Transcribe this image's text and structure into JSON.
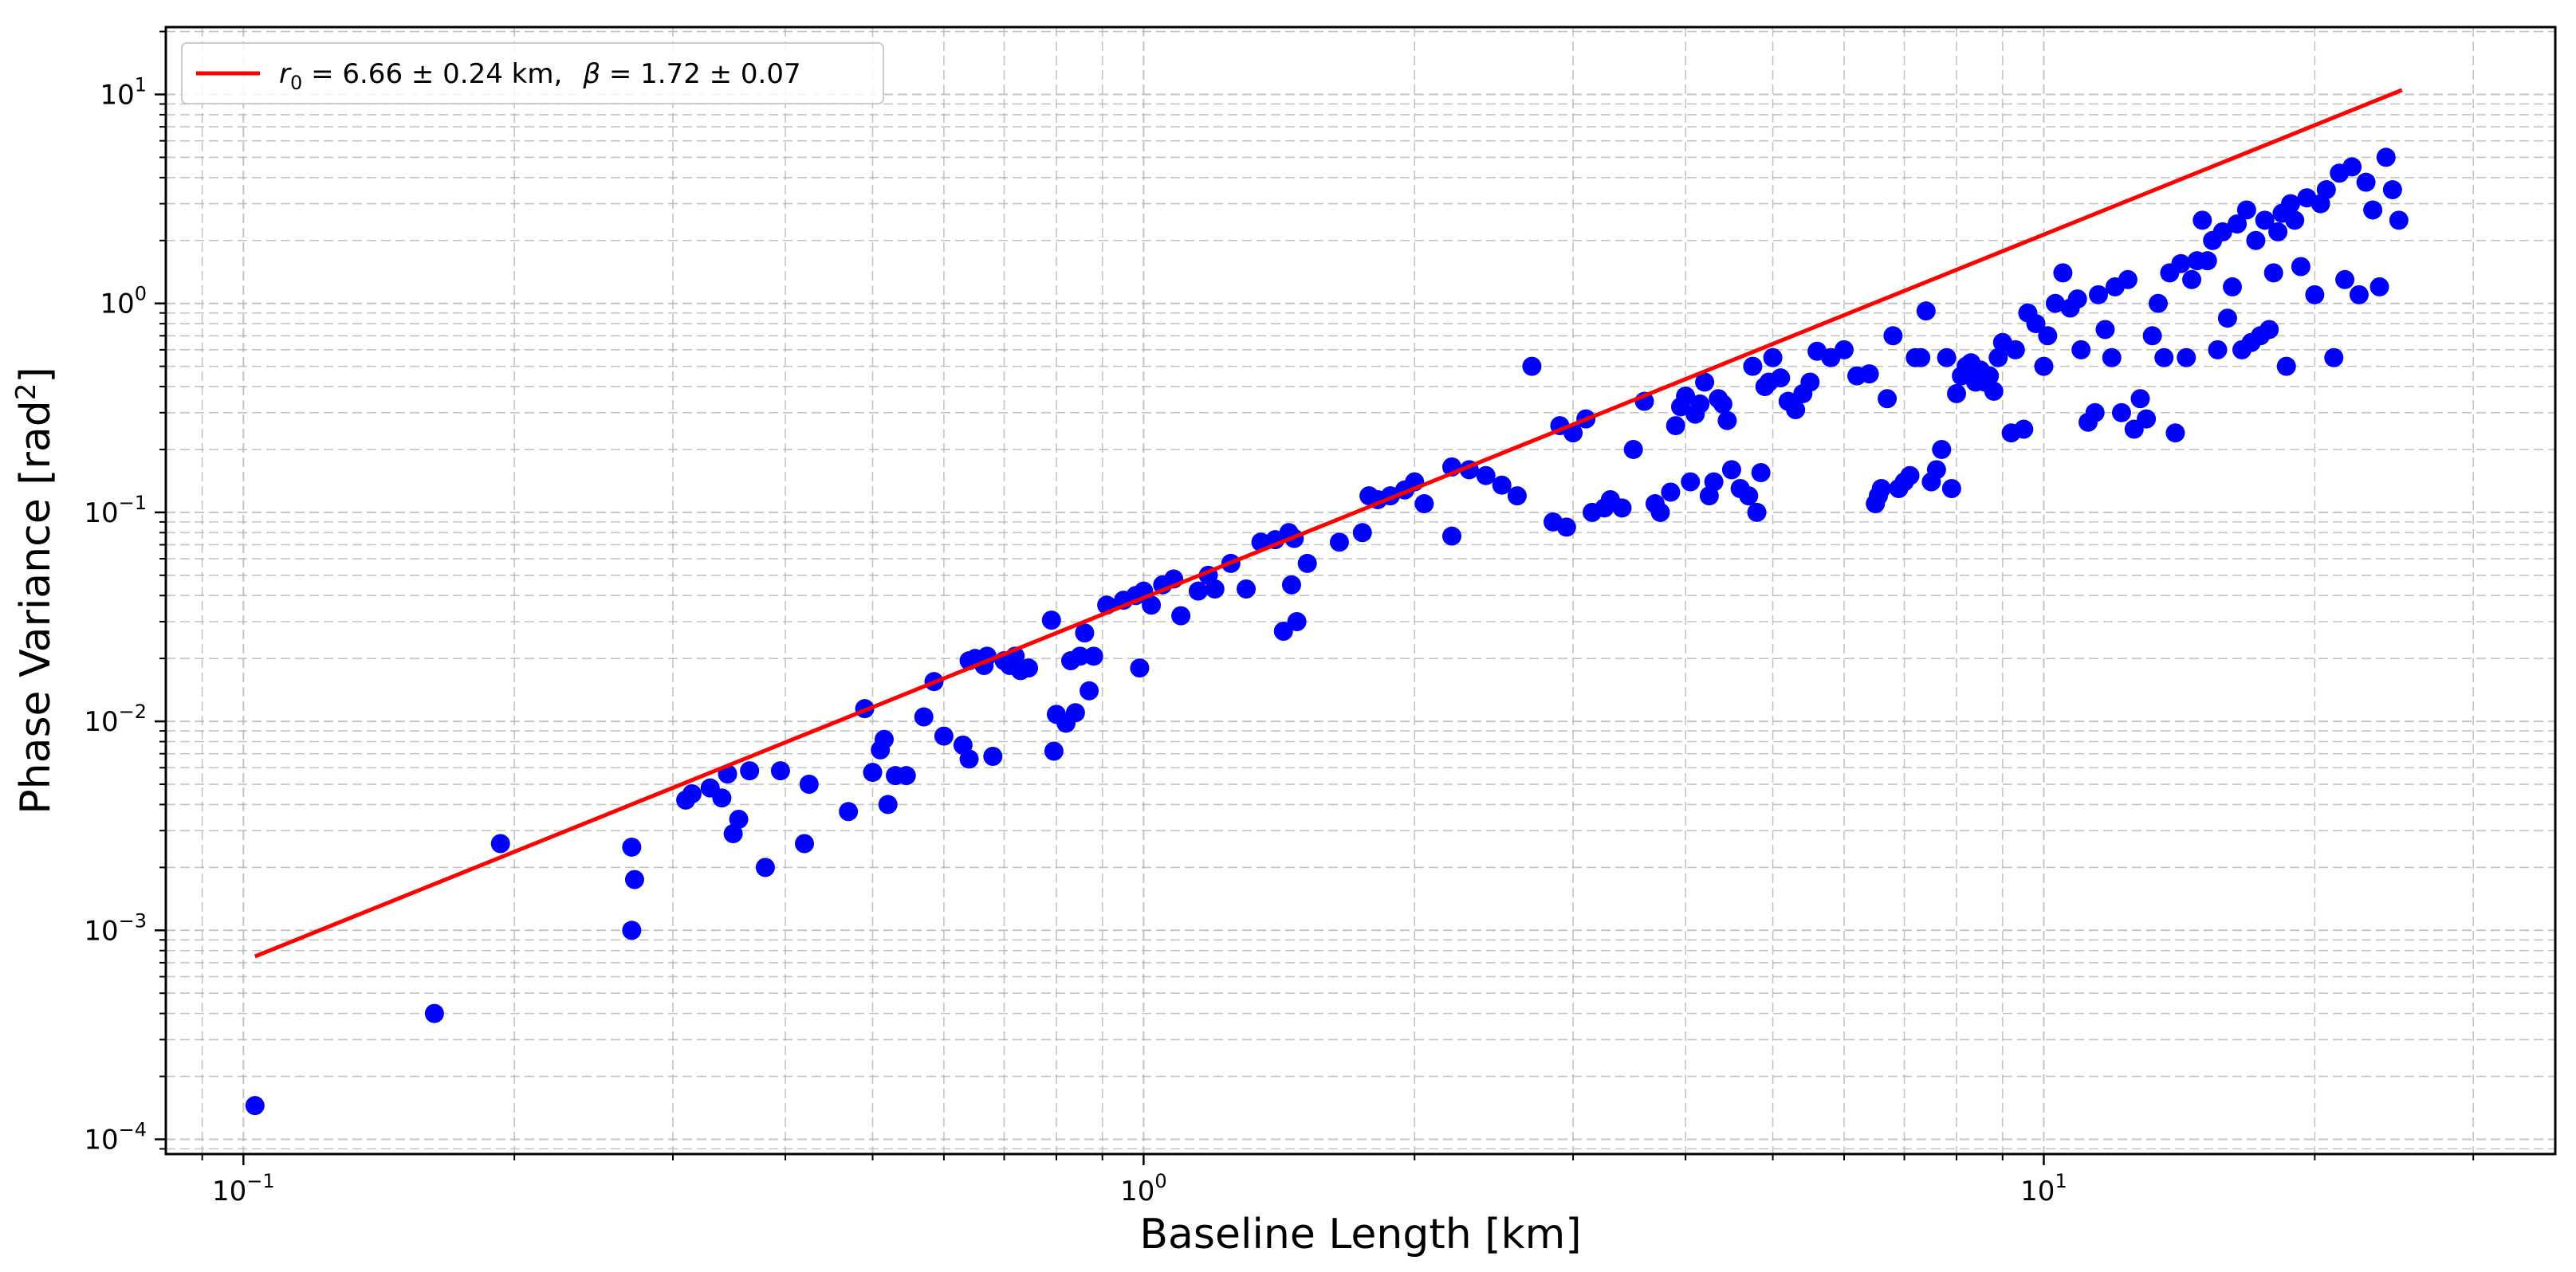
{
  "chart_data": {
    "type": "scatter",
    "xlabel": "Baseline Length [km]",
    "ylabel": "Phase Variance [rad",
    "ylabel_sup": "2",
    "ylabel_close": "]",
    "xscale": "log",
    "yscale": "log",
    "xlim": [
      0.082,
      37
    ],
    "ylim": [
      8.5e-05,
      21
    ],
    "grid": true,
    "legend_placement": "top-left",
    "x_ticks": [
      {
        "value": 0.1,
        "base": "10",
        "exp": "−1"
      },
      {
        "value": 1,
        "base": "10",
        "exp": "0"
      },
      {
        "value": 10,
        "base": "10",
        "exp": "1"
      }
    ],
    "y_ticks": [
      {
        "value": 0.0001,
        "base": "10",
        "exp": "−4"
      },
      {
        "value": 0.001,
        "base": "10",
        "exp": "−3"
      },
      {
        "value": 0.01,
        "base": "10",
        "exp": "−2"
      },
      {
        "value": 0.1,
        "base": "10",
        "exp": "−1"
      },
      {
        "value": 1,
        "base": "10",
        "exp": "0"
      },
      {
        "value": 10,
        "base": "10",
        "exp": "1"
      }
    ],
    "legend": {
      "r0_symbol": "r",
      "r0_sub": "0",
      "r0_text": " = 6.66 ± 0.24 km,",
      "beta_symbol": "β",
      "beta_text": " = 1.72 ± 0.07"
    },
    "colors": {
      "points": "#0000ff",
      "fit": "#ff0000",
      "grid": "#b0b0b0"
    },
    "fit_line": {
      "x": [
        0.103,
        25
      ],
      "y": [
        0.00075,
        10.5
      ]
    },
    "series": [
      {
        "type": "scatter",
        "points": [
          [
            0.103,
            0.000145
          ],
          [
            0.163,
            0.0004
          ],
          [
            0.193,
            0.0026
          ],
          [
            0.27,
            0.001
          ],
          [
            0.27,
            0.0025
          ],
          [
            0.272,
            0.00175
          ],
          [
            0.31,
            0.0042
          ],
          [
            0.315,
            0.0045
          ],
          [
            0.33,
            0.0048
          ],
          [
            0.34,
            0.0043
          ],
          [
            0.345,
            0.0056
          ],
          [
            0.35,
            0.0029
          ],
          [
            0.355,
            0.0034
          ],
          [
            0.365,
            0.0058
          ],
          [
            0.38,
            0.002
          ],
          [
            0.395,
            0.0058
          ],
          [
            0.42,
            0.0026
          ],
          [
            0.425,
            0.005
          ],
          [
            0.47,
            0.0037
          ],
          [
            0.49,
            0.0115
          ],
          [
            0.5,
            0.0057
          ],
          [
            0.51,
            0.0073
          ],
          [
            0.515,
            0.0082
          ],
          [
            0.52,
            0.004
          ],
          [
            0.53,
            0.0055
          ],
          [
            0.545,
            0.0055
          ],
          [
            0.57,
            0.0105
          ],
          [
            0.585,
            0.0155
          ],
          [
            0.6,
            0.0085
          ],
          [
            0.63,
            0.0077
          ],
          [
            0.64,
            0.0066
          ],
          [
            0.64,
            0.0195
          ],
          [
            0.65,
            0.02
          ],
          [
            0.665,
            0.0185
          ],
          [
            0.67,
            0.0205
          ],
          [
            0.68,
            0.0068
          ],
          [
            0.7,
            0.0195
          ],
          [
            0.71,
            0.0185
          ],
          [
            0.72,
            0.0205
          ],
          [
            0.73,
            0.0175
          ],
          [
            0.745,
            0.018
          ],
          [
            0.79,
            0.0305
          ],
          [
            0.795,
            0.0072
          ],
          [
            0.8,
            0.0108
          ],
          [
            0.82,
            0.0098
          ],
          [
            0.83,
            0.0195
          ],
          [
            0.84,
            0.011
          ],
          [
            0.85,
            0.0205
          ],
          [
            0.86,
            0.0265
          ],
          [
            0.87,
            0.014
          ],
          [
            0.88,
            0.0205
          ],
          [
            0.91,
            0.036
          ],
          [
            0.95,
            0.038
          ],
          [
            0.98,
            0.04
          ],
          [
            0.99,
            0.018
          ],
          [
            1.0,
            0.042
          ],
          [
            1.02,
            0.036
          ],
          [
            1.05,
            0.045
          ],
          [
            1.08,
            0.048
          ],
          [
            1.1,
            0.032
          ],
          [
            1.15,
            0.042
          ],
          [
            1.18,
            0.05
          ],
          [
            1.2,
            0.043
          ],
          [
            1.25,
            0.057
          ],
          [
            1.3,
            0.043
          ],
          [
            1.35,
            0.072
          ],
          [
            1.4,
            0.074
          ],
          [
            1.43,
            0.027
          ],
          [
            1.45,
            0.08
          ],
          [
            1.46,
            0.045
          ],
          [
            1.47,
            0.075
          ],
          [
            1.48,
            0.03
          ],
          [
            1.52,
            0.057
          ],
          [
            1.65,
            0.072
          ],
          [
            1.75,
            0.08
          ],
          [
            1.78,
            0.12
          ],
          [
            1.82,
            0.115
          ],
          [
            1.88,
            0.12
          ],
          [
            1.95,
            0.128
          ],
          [
            2.0,
            0.14
          ],
          [
            2.05,
            0.11
          ],
          [
            2.2,
            0.077
          ],
          [
            2.2,
            0.165
          ],
          [
            2.3,
            0.16
          ],
          [
            2.4,
            0.15
          ],
          [
            2.5,
            0.135
          ],
          [
            2.6,
            0.12
          ],
          [
            2.7,
            0.5
          ],
          [
            2.85,
            0.09
          ],
          [
            2.9,
            0.26
          ],
          [
            2.95,
            0.085
          ],
          [
            3.0,
            0.24
          ],
          [
            3.1,
            0.28
          ],
          [
            3.15,
            0.1
          ],
          [
            3.25,
            0.105
          ],
          [
            3.3,
            0.115
          ],
          [
            3.4,
            0.105
          ],
          [
            3.5,
            0.2
          ],
          [
            3.6,
            0.34
          ],
          [
            3.7,
            0.11
          ],
          [
            3.75,
            0.1
          ],
          [
            3.85,
            0.125
          ],
          [
            3.9,
            0.26
          ],
          [
            3.95,
            0.32
          ],
          [
            4.0,
            0.36
          ],
          [
            4.05,
            0.14
          ],
          [
            4.1,
            0.295
          ],
          [
            4.15,
            0.33
          ],
          [
            4.2,
            0.42
          ],
          [
            4.25,
            0.12
          ],
          [
            4.3,
            0.14
          ],
          [
            4.35,
            0.35
          ],
          [
            4.4,
            0.33
          ],
          [
            4.45,
            0.275
          ],
          [
            4.5,
            0.16
          ],
          [
            4.6,
            0.13
          ],
          [
            4.7,
            0.12
          ],
          [
            4.75,
            0.5
          ],
          [
            4.8,
            0.1
          ],
          [
            4.85,
            0.155
          ],
          [
            4.9,
            0.4
          ],
          [
            4.95,
            0.42
          ],
          [
            5.0,
            0.55
          ],
          [
            5.1,
            0.44
          ],
          [
            5.2,
            0.34
          ],
          [
            5.3,
            0.31
          ],
          [
            5.4,
            0.37
          ],
          [
            5.5,
            0.42
          ],
          [
            5.6,
            0.59
          ],
          [
            5.8,
            0.55
          ],
          [
            6.0,
            0.6
          ],
          [
            6.2,
            0.45
          ],
          [
            6.4,
            0.46
          ],
          [
            6.5,
            0.11
          ],
          [
            6.55,
            0.12
          ],
          [
            6.6,
            0.13
          ],
          [
            6.7,
            0.35
          ],
          [
            6.8,
            0.7
          ],
          [
            6.9,
            0.13
          ],
          [
            7.0,
            0.14
          ],
          [
            7.1,
            0.15
          ],
          [
            7.2,
            0.55
          ],
          [
            7.3,
            0.55
          ],
          [
            7.4,
            0.92
          ],
          [
            7.5,
            0.14
          ],
          [
            7.6,
            0.16
          ],
          [
            7.7,
            0.2
          ],
          [
            7.8,
            0.55
          ],
          [
            7.9,
            0.13
          ],
          [
            8.0,
            0.37
          ],
          [
            8.1,
            0.45
          ],
          [
            8.2,
            0.5
          ],
          [
            8.3,
            0.52
          ],
          [
            8.4,
            0.42
          ],
          [
            8.5,
            0.48
          ],
          [
            8.6,
            0.42
          ],
          [
            8.7,
            0.45
          ],
          [
            8.8,
            0.38
          ],
          [
            8.9,
            0.55
          ],
          [
            9.0,
            0.65
          ],
          [
            9.2,
            0.24
          ],
          [
            9.3,
            0.6
          ],
          [
            9.5,
            0.25
          ],
          [
            9.6,
            0.9
          ],
          [
            9.8,
            0.8
          ],
          [
            10.0,
            0.5
          ],
          [
            10.1,
            0.7
          ],
          [
            10.3,
            1.0
          ],
          [
            10.5,
            1.4
          ],
          [
            10.7,
            0.95
          ],
          [
            10.9,
            1.05
          ],
          [
            11.0,
            0.6
          ],
          [
            11.2,
            0.27
          ],
          [
            11.4,
            0.3
          ],
          [
            11.5,
            1.1
          ],
          [
            11.7,
            0.75
          ],
          [
            11.9,
            0.55
          ],
          [
            12.0,
            1.2
          ],
          [
            12.2,
            0.3
          ],
          [
            12.4,
            1.3
          ],
          [
            12.6,
            0.25
          ],
          [
            12.8,
            0.35
          ],
          [
            13.0,
            0.28
          ],
          [
            13.2,
            0.7
          ],
          [
            13.4,
            1.0
          ],
          [
            13.6,
            0.55
          ],
          [
            13.8,
            1.4
          ],
          [
            14.0,
            0.24
          ],
          [
            14.2,
            1.55
          ],
          [
            14.4,
            0.55
          ],
          [
            14.6,
            1.3
          ],
          [
            14.8,
            1.6
          ],
          [
            15.0,
            2.5
          ],
          [
            15.2,
            1.6
          ],
          [
            15.4,
            2.0
          ],
          [
            15.6,
            0.6
          ],
          [
            15.8,
            2.2
          ],
          [
            16.0,
            0.85
          ],
          [
            16.2,
            1.2
          ],
          [
            16.4,
            2.4
          ],
          [
            16.6,
            0.6
          ],
          [
            16.8,
            2.8
          ],
          [
            17.0,
            0.65
          ],
          [
            17.2,
            2.0
          ],
          [
            17.4,
            0.7
          ],
          [
            17.6,
            2.5
          ],
          [
            17.8,
            0.75
          ],
          [
            18.0,
            1.4
          ],
          [
            18.2,
            2.2
          ],
          [
            18.4,
            2.7
          ],
          [
            18.6,
            0.5
          ],
          [
            18.8,
            3.0
          ],
          [
            19.0,
            2.5
          ],
          [
            19.3,
            1.5
          ],
          [
            19.6,
            3.2
          ],
          [
            20.0,
            1.1
          ],
          [
            20.3,
            3.0
          ],
          [
            20.6,
            3.5
          ],
          [
            21.0,
            0.55
          ],
          [
            21.3,
            4.2
          ],
          [
            21.6,
            1.3
          ],
          [
            22.0,
            4.5
          ],
          [
            22.4,
            1.1
          ],
          [
            22.8,
            3.8
          ],
          [
            23.2,
            2.8
          ],
          [
            23.6,
            1.2
          ],
          [
            24.0,
            5.0
          ],
          [
            24.4,
            3.5
          ],
          [
            24.8,
            2.5
          ]
        ]
      }
    ]
  }
}
